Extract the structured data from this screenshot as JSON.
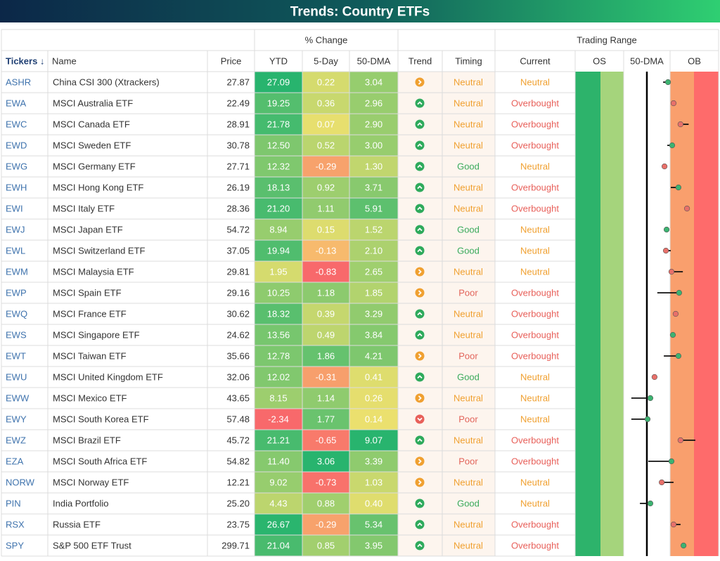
{
  "title": "Trends: Country ETFs",
  "header": {
    "groups": [
      "% Change",
      "Trading Range"
    ],
    "columns": [
      "Tickers ↓",
      "Name",
      "Price",
      "YTD",
      "5-Day",
      "50-DMA",
      "Trend",
      "Timing",
      "Current",
      "OS",
      "50-DMA",
      "OB"
    ]
  },
  "range_scale": [
    -3,
    3
  ],
  "rows": [
    {
      "ticker": "ASHR",
      "name": "China CSI 300 (Xtrackers)",
      "price": "27.87",
      "ytd": "27.09",
      "d5": "0.22",
      "dma": "3.04",
      "trend": "right",
      "timing": "Neutral",
      "current": "Neutral",
      "range": [
        0.91,
        0.7
      ],
      "dot_color": "#3cb371"
    },
    {
      "ticker": "EWA",
      "name": "MSCI Australia ETF",
      "price": "22.49",
      "ytd": "19.25",
      "d5": "0.36",
      "dma": "2.96",
      "trend": "up",
      "timing": "Neutral",
      "current": "Overbought",
      "range": [
        1.15,
        null
      ],
      "dot_color": "#e8706a"
    },
    {
      "ticker": "EWC",
      "name": "MSCI Canada ETF",
      "price": "28.91",
      "ytd": "21.78",
      "d5": "0.07",
      "dma": "2.90",
      "trend": "up",
      "timing": "Neutral",
      "current": "Overbought",
      "range": [
        1.45,
        1.8
      ],
      "dot_color": "#e8706a"
    },
    {
      "ticker": "EWD",
      "name": "MSCI Sweden ETF",
      "price": "30.78",
      "ytd": "12.50",
      "d5": "0.52",
      "dma": "3.00",
      "trend": "up",
      "timing": "Neutral",
      "current": "Overbought",
      "range": [
        1.09,
        0.88
      ],
      "dot_color": "#3cb371"
    },
    {
      "ticker": "EWG",
      "name": "MSCI Germany ETF",
      "price": "27.71",
      "ytd": "12.32",
      "d5": "-0.29",
      "dma": "1.30",
      "trend": "up",
      "timing": "Good",
      "current": "Neutral",
      "range": [
        0.76,
        null
      ],
      "dot_color": "#e8706a"
    },
    {
      "ticker": "EWH",
      "name": "MSCI Hong Kong ETF",
      "price": "26.19",
      "ytd": "18.13",
      "d5": "0.92",
      "dma": "3.71",
      "trend": "up",
      "timing": "Neutral",
      "current": "Overbought",
      "range": [
        1.36,
        1.03
      ],
      "dot_color": "#3cb371"
    },
    {
      "ticker": "EWI",
      "name": "MSCI Italy ETF",
      "price": "28.36",
      "ytd": "21.20",
      "d5": "1.11",
      "dma": "5.91",
      "trend": "up",
      "timing": "Neutral",
      "current": "Overbought",
      "range": [
        1.73,
        null
      ],
      "dot_color": "#e8706a"
    },
    {
      "ticker": "EWJ",
      "name": "MSCI Japan ETF",
      "price": "54.72",
      "ytd": "8.94",
      "d5": "0.15",
      "dma": "1.52",
      "trend": "up",
      "timing": "Good",
      "current": "Neutral",
      "range": [
        0.85,
        null
      ],
      "dot_color": "#3cb371"
    },
    {
      "ticker": "EWL",
      "name": "MSCI Switzerland ETF",
      "price": "37.05",
      "ytd": "19.94",
      "d5": "-0.13",
      "dma": "2.10",
      "trend": "up",
      "timing": "Good",
      "current": "Neutral",
      "range": [
        0.82,
        1.03
      ],
      "dot_color": "#e8706a"
    },
    {
      "ticker": "EWM",
      "name": "MSCI Malaysia ETF",
      "price": "29.81",
      "ytd": "1.95",
      "d5": "-0.83",
      "dma": "2.65",
      "trend": "right",
      "timing": "Neutral",
      "current": "Neutral",
      "range": [
        1.06,
        1.55
      ],
      "dot_color": "#e8706a"
    },
    {
      "ticker": "EWP",
      "name": "MSCI Spain ETF",
      "price": "29.16",
      "ytd": "10.25",
      "d5": "1.18",
      "dma": "1.85",
      "trend": "right",
      "timing": "Poor",
      "current": "Overbought",
      "range": [
        1.39,
        0.45
      ],
      "dot_color": "#3cb371"
    },
    {
      "ticker": "EWQ",
      "name": "MSCI France ETF",
      "price": "30.62",
      "ytd": "18.32",
      "d5": "0.39",
      "dma": "3.29",
      "trend": "up",
      "timing": "Neutral",
      "current": "Overbought",
      "range": [
        1.24,
        null
      ],
      "dot_color": "#e8706a"
    },
    {
      "ticker": "EWS",
      "name": "MSCI Singapore ETF",
      "price": "24.62",
      "ytd": "13.56",
      "d5": "0.49",
      "dma": "3.84",
      "trend": "up",
      "timing": "Neutral",
      "current": "Overbought",
      "range": [
        1.12,
        null
      ],
      "dot_color": "#3cb371"
    },
    {
      "ticker": "EWT",
      "name": "MSCI Taiwan ETF",
      "price": "35.66",
      "ytd": "12.78",
      "d5": "1.86",
      "dma": "4.21",
      "trend": "right",
      "timing": "Poor",
      "current": "Overbought",
      "range": [
        1.36,
        0.73
      ],
      "dot_color": "#3cb371"
    },
    {
      "ticker": "EWU",
      "name": "MSCI United Kingdom ETF",
      "price": "32.06",
      "ytd": "12.02",
      "d5": "-0.31",
      "dma": "0.41",
      "trend": "up",
      "timing": "Good",
      "current": "Neutral",
      "range": [
        0.33,
        null
      ],
      "dot_color": "#e8706a"
    },
    {
      "ticker": "EWW",
      "name": "MSCI Mexico ETF",
      "price": "43.65",
      "ytd": "8.15",
      "d5": "1.14",
      "dma": "0.26",
      "trend": "right",
      "timing": "Neutral",
      "current": "Neutral",
      "range": [
        0.15,
        -0.67
      ],
      "dot_color": "#3cb371"
    },
    {
      "ticker": "EWY",
      "name": "MSCI South Korea ETF",
      "price": "57.48",
      "ytd": "-2.34",
      "d5": "1.77",
      "dma": "0.14",
      "trend": "down",
      "timing": "Poor",
      "current": "Neutral",
      "range": [
        0.03,
        -0.67
      ],
      "dot_color": "#3cb371"
    },
    {
      "ticker": "EWZ",
      "name": "MSCI Brazil ETF",
      "price": "45.72",
      "ytd": "21.21",
      "d5": "-0.65",
      "dma": "9.07",
      "trend": "up",
      "timing": "Neutral",
      "current": "Overbought",
      "range": [
        1.45,
        2.09
      ],
      "dot_color": "#e8706a"
    },
    {
      "ticker": "EZA",
      "name": "MSCI South Africa ETF",
      "price": "54.82",
      "ytd": "11.40",
      "d5": "3.06",
      "dma": "3.39",
      "trend": "right",
      "timing": "Poor",
      "current": "Overbought",
      "range": [
        1.06,
        0.06
      ],
      "dot_color": "#3cb371"
    },
    {
      "ticker": "NORW",
      "name": "MSCI Norway ETF",
      "price": "12.21",
      "ytd": "9.02",
      "d5": "-0.73",
      "dma": "1.03",
      "trend": "right",
      "timing": "Neutral",
      "current": "Neutral",
      "range": [
        0.64,
        1.15
      ],
      "dot_color": "#e8706a"
    },
    {
      "ticker": "PIN",
      "name": "India Portfolio",
      "price": "25.20",
      "ytd": "4.43",
      "d5": "0.88",
      "dma": "0.40",
      "trend": "up",
      "timing": "Good",
      "current": "Neutral",
      "range": [
        0.15,
        -0.3
      ],
      "dot_color": "#3cb371"
    },
    {
      "ticker": "RSX",
      "name": "Russia ETF",
      "price": "23.75",
      "ytd": "26.67",
      "d5": "-0.29",
      "dma": "5.34",
      "trend": "up",
      "timing": "Neutral",
      "current": "Overbought",
      "range": [
        1.15,
        1.45
      ],
      "dot_color": "#e8706a"
    },
    {
      "ticker": "SPY",
      "name": "S&P 500 ETF Trust",
      "price": "299.71",
      "ytd": "21.04",
      "d5": "0.85",
      "dma": "3.95",
      "trend": "up",
      "timing": "Neutral",
      "current": "Overbought",
      "range": [
        1.58,
        null
      ],
      "dot_color": "#3cb371"
    }
  ]
}
